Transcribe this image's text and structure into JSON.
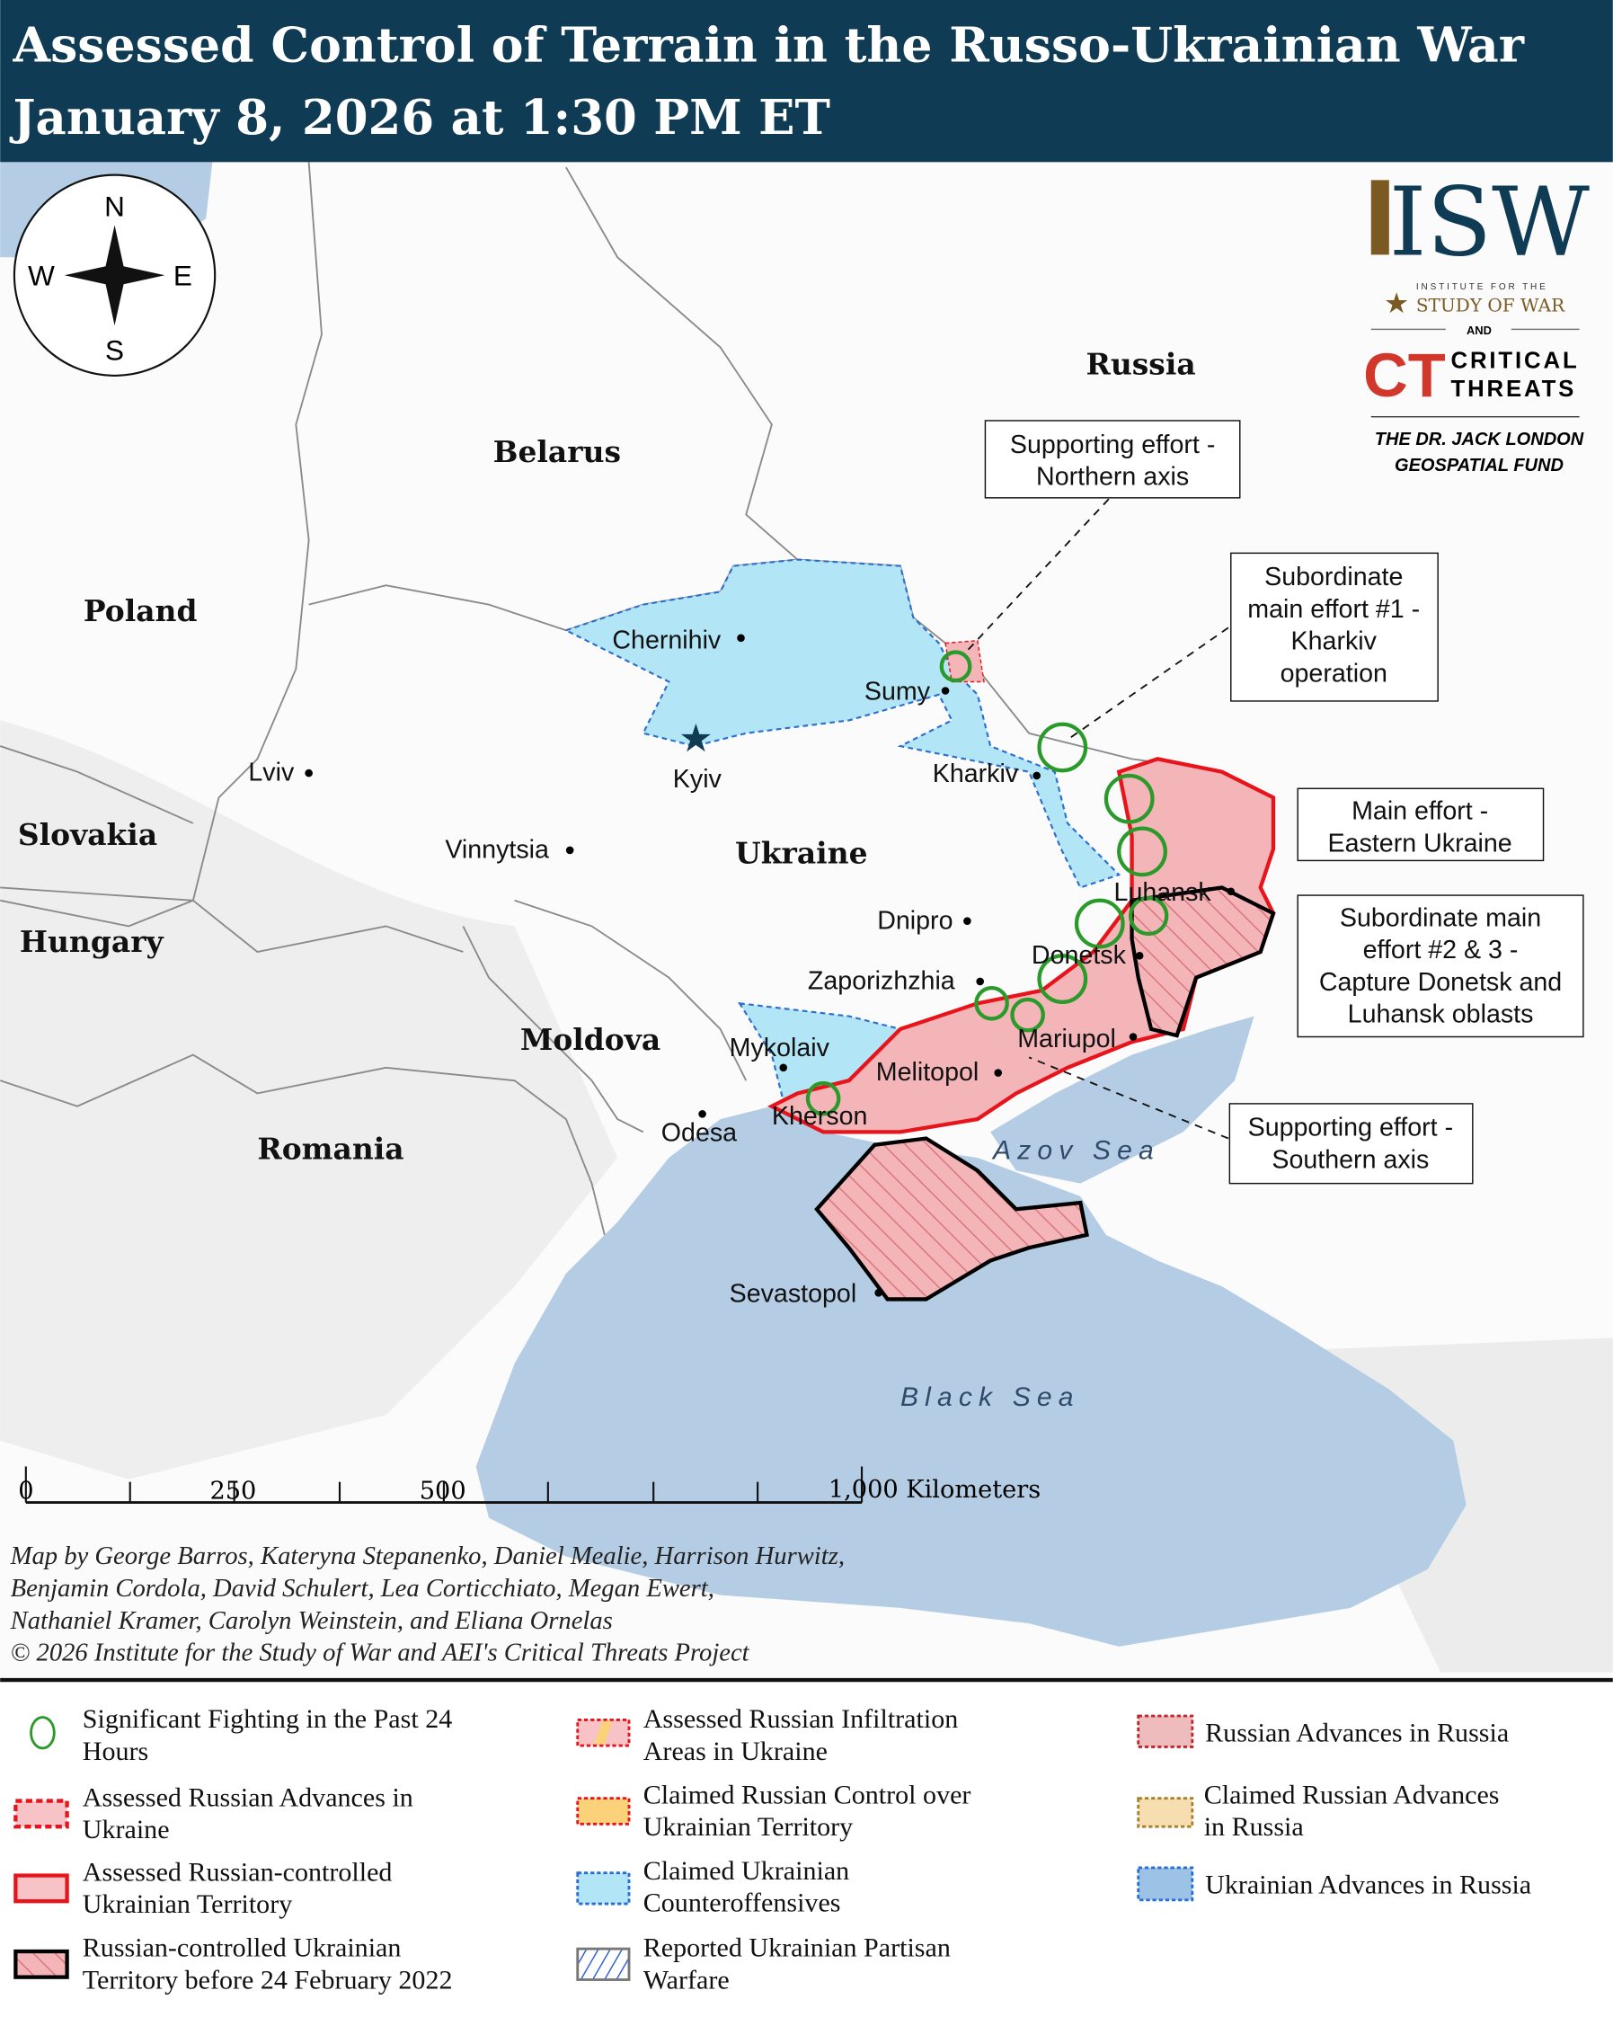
{
  "header": {
    "title_line1": "Assessed Control of Terrain in the Russo-Ukrainian War",
    "title_line2": "January 8, 2026 at 1:30 PM ET",
    "background_color": "#0f3b55"
  },
  "compass": {
    "n": "N",
    "s": "S",
    "e": "E",
    "w": "W"
  },
  "logos": {
    "isw": "ISW",
    "isw_sub1": "INSTITUTE FOR THE",
    "isw_sub2": "STUDY OF WAR",
    "and": "AND",
    "ct_mark": "CT",
    "ct_line1": "CRITICAL",
    "ct_line2": "THREATS",
    "fund_line1": "THE DR. JACK LONDON",
    "fund_line2": "GEOSPATIAL FUND"
  },
  "countries": [
    "Russia",
    "Belarus",
    "Poland",
    "Slovakia",
    "Hungary",
    "Ukraine",
    "Moldova",
    "Romania"
  ],
  "cities": [
    "Chernihiv",
    "Sumy",
    "Kyiv",
    "Kharkiv",
    "Lviv",
    "Vinnytsia",
    "Dnipro",
    "Luhansk",
    "Donetsk",
    "Zaporizhzhia",
    "Mariupol",
    "Mykolaiv",
    "Melitopol",
    "Kherson",
    "Odesa",
    "Sevastopol"
  ],
  "seas": {
    "azov": "Azov Sea",
    "black": "Black Sea"
  },
  "callouts": {
    "northern": [
      "Supporting effort -",
      "Northern axis"
    ],
    "kharkiv": [
      "Subordinate",
      "main effort #1 -",
      "Kharkiv",
      "operation"
    ],
    "eastern": [
      "Main effort -",
      "Eastern Ukraine"
    ],
    "donetsk": [
      "Subordinate main",
      "effort #2 & 3 -",
      "Capture Donetsk and",
      "Luhansk oblasts"
    ],
    "southern": [
      "Supporting effort -",
      "Southern axis"
    ]
  },
  "scale_bar": {
    "ticks": [
      "0",
      "250",
      "500",
      "1,000 Kilometers"
    ]
  },
  "credits": [
    "Map by George Barros, Kateryna Stepanenko, Daniel Mealie, Harrison Hurwitz,",
    "Benjamin Cordola, David Schulert, Lea Corticchiato, Megan Ewert,",
    "Nathaniel Kramer, Carolyn Weinstein, and Eliana Ornelas",
    "© 2026 Institute for the Study of War and AEI's Critical Threats Project"
  ],
  "legend": [
    {
      "lines": [
        "Significant Fighting in the Past 24",
        "Hours"
      ],
      "symbol": "green-circle"
    },
    {
      "lines": [
        "Assessed Russian Advances in",
        "Ukraine"
      ],
      "symbol": "pink-dashed-red"
    },
    {
      "lines": [
        "Assessed Russian-controlled",
        "Ukrainian Territory"
      ],
      "symbol": "pink-solid-red"
    },
    {
      "lines": [
        "Russian-controlled Ukrainian",
        "Territory before 24 February 2022"
      ],
      "symbol": "hatched-black"
    },
    {
      "lines": [
        "Assessed Russian Infiltration",
        "Areas in Ukraine"
      ],
      "symbol": "pink-yellow-dotted"
    },
    {
      "lines": [
        "Claimed Russian Control over",
        "Ukrainian Territory"
      ],
      "symbol": "orange-dotted-red"
    },
    {
      "lines": [
        "Claimed Ukrainian",
        "Counteroffensives"
      ],
      "symbol": "lightblue-dotted"
    },
    {
      "lines": [
        "Reported Ukrainian Partisan",
        "Warfare"
      ],
      "symbol": "blue-hatch"
    },
    {
      "lines": [
        "Russian Advances in Russia"
      ],
      "symbol": "pink-dotted-darkred"
    },
    {
      "lines": [
        "Claimed Russian Advances",
        "in Russia"
      ],
      "symbol": "tan-dotted"
    },
    {
      "lines": [
        "Ukrainian Advances in Russia"
      ],
      "symbol": "blue-dotted"
    }
  ],
  "colors": {
    "russian_control": "#f4b5b9",
    "russian_border": "#e8141c",
    "ukrainian_claimed": "#b2e6f7",
    "water": "#b4cde4",
    "fighting_circle": "#2a9a2a"
  }
}
